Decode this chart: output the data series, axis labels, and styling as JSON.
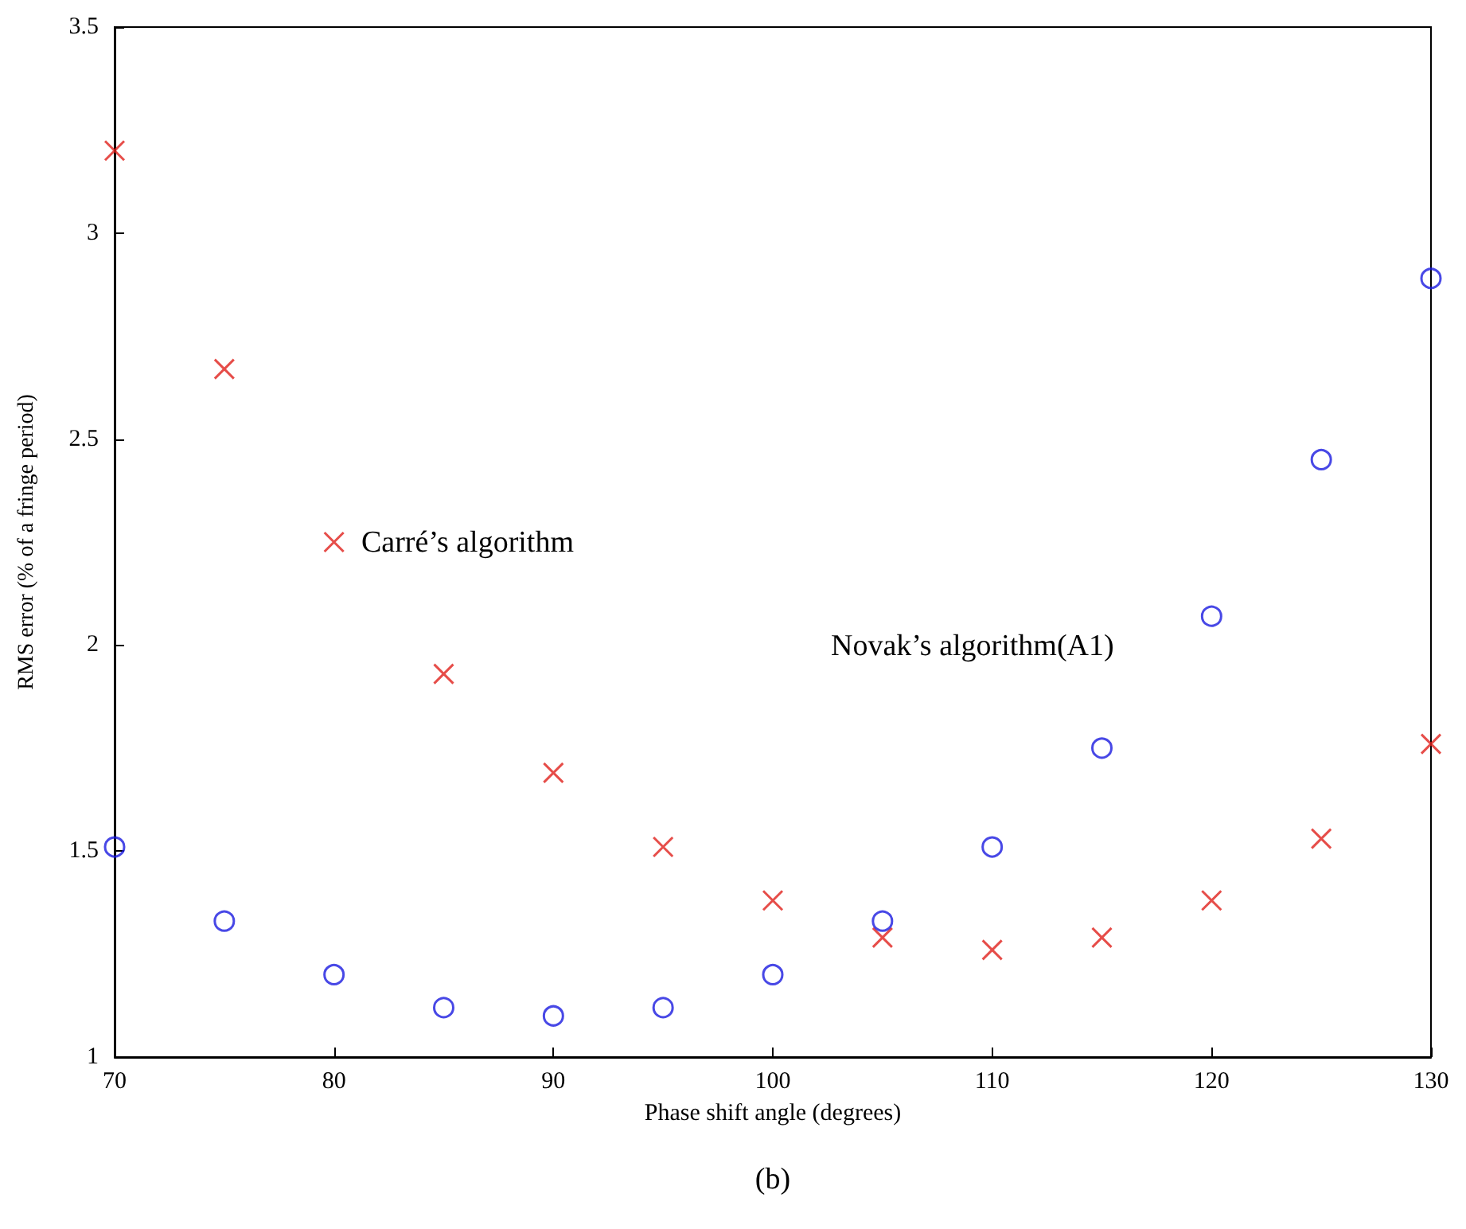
{
  "chart_data": {
    "type": "scatter",
    "xlabel": "Phase shift angle (degrees)",
    "ylabel": "RMS error (% of a fringe period)",
    "x": [
      70,
      75,
      80,
      85,
      90,
      95,
      100,
      105,
      110,
      115,
      120,
      125,
      130
    ],
    "series": [
      {
        "color": "#e0201c",
        "marker": "cross",
        "values": [
          3.2,
          2.67,
          2.25,
          1.93,
          1.69,
          1.51,
          1.38,
          1.29,
          1.26,
          1.29,
          1.38,
          1.53,
          1.76
        ]
      },
      {
        "color": "#1a1ae0",
        "marker": "circle",
        "values": [
          1.51,
          1.33,
          1.2,
          1.12,
          1.1,
          1.12,
          1.2,
          1.33,
          1.51,
          1.75,
          2.07,
          2.45,
          2.89
        ]
      }
    ],
    "xlim": [
      70,
      130
    ],
    "xticks": [
      70,
      80,
      90,
      100,
      110,
      120,
      130
    ],
    "ylim": [
      1,
      3.5
    ],
    "yticks": [
      1,
      1.5,
      2,
      2.5,
      3,
      3.5
    ],
    "grid": false,
    "annotations": [
      "Carré’s algorithm",
      "Novak’s algorithm(A1)",
      "(b)"
    ]
  }
}
